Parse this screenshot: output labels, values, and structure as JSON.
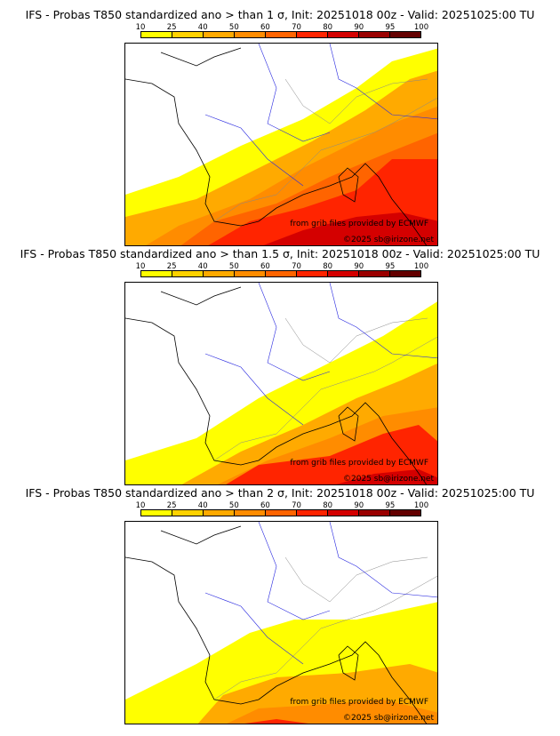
{
  "colorbar": {
    "labels": [
      "10",
      "25",
      "40",
      "50",
      "60",
      "70",
      "80",
      "90",
      "95",
      "100"
    ],
    "colors": [
      "#ffff00",
      "#ffd200",
      "#ffaa00",
      "#ff8c00",
      "#ff6400",
      "#ff2400",
      "#d40000",
      "#9a0000",
      "#640000"
    ]
  },
  "panels": [
    {
      "title": "IFS - Probas T850  standardized ano > than 1 σ, Init: 20251018 00z - Valid: 20251025:00 TU"
    },
    {
      "title": "IFS - Probas T850  standardized ano > than 1.5 σ, Init: 20251018 00z - Valid: 20251025:00 TU"
    },
    {
      "title": "IFS - Probas T850  standardized ano > than 2 σ, Init: 20251018 00z - Valid: 20251025:00 TU"
    }
  ],
  "credits": {
    "source": "from grib files provided by ECMWF",
    "copyright": "©2025 sb@irizone.net"
  }
}
